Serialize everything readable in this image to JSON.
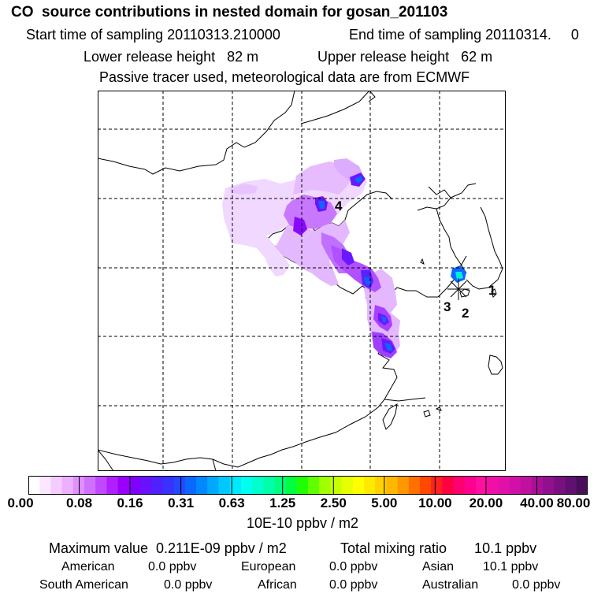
{
  "header": {
    "title": "CO  source contributions in nested domain for gosan_201103",
    "start_time": "Start time of sampling 20110313.210000",
    "end_time": "End time of sampling 20110314.     0",
    "lower_release": "Lower release height   82 m",
    "upper_release": "Upper release height   62 m",
    "tracer_note": "Passive tracer used, meteorological data are from ECMWF"
  },
  "map": {
    "site_labels": [
      "4",
      "1",
      "3",
      "2"
    ]
  },
  "colorbar": {
    "ticks": [
      "0.00",
      "0.08",
      "0.16",
      "0.31",
      "0.63",
      "1.25",
      "2.50",
      "5.00",
      "10.00",
      "20.00",
      "40.00",
      "80.00"
    ],
    "colors": [
      "#ffffff",
      "#fbe8ff",
      "#f4ccff",
      "#ecb0ff",
      "#e090ff",
      "#d070ff",
      "#c048ff",
      "#b020ff",
      "#9b00ff",
      "#8000ff",
      "#6a10ff",
      "#5020ff",
      "#3a30ff",
      "#2448ff",
      "#0a68ff",
      "#0088ff",
      "#00a8ff",
      "#00c8ff",
      "#00e8ff",
      "#00ffee",
      "#00ffcc",
      "#00ffaa",
      "#00ff80",
      "#00ff40",
      "#20ff00",
      "#60ff00",
      "#a0ff00",
      "#c8ff00",
      "#e8ff00",
      "#ffff00",
      "#ffea00",
      "#ffd200",
      "#ffb800",
      "#ff9800",
      "#ff7000",
      "#ff4800",
      "#ff2020",
      "#ff0040",
      "#ff0070",
      "#ff0090",
      "#ff10a0",
      "#f010a8",
      "#e010a8",
      "#d010a8",
      "#c010a0",
      "#a81098",
      "#901090",
      "#781080",
      "#601070",
      "#4a0e5a"
    ],
    "units": "10E-10 ppbv / m2"
  },
  "summary": {
    "max_value": "Maximum value  0.211E-09 ppbv / m2",
    "total_mixing": "Total mixing ratio       10.1 ppbv",
    "american": "American",
    "american_val": "0.0 ppbv",
    "european": "European",
    "european_val": "0.0 ppbv",
    "asian": "Asian",
    "asian_val": "10.1 ppbv",
    "south_american": "South American",
    "south_american_val": "0.0 ppbv",
    "african": "African",
    "african_val": "0.0 ppbv",
    "australian": "Australian",
    "australian_val": "0.0 ppbv"
  }
}
